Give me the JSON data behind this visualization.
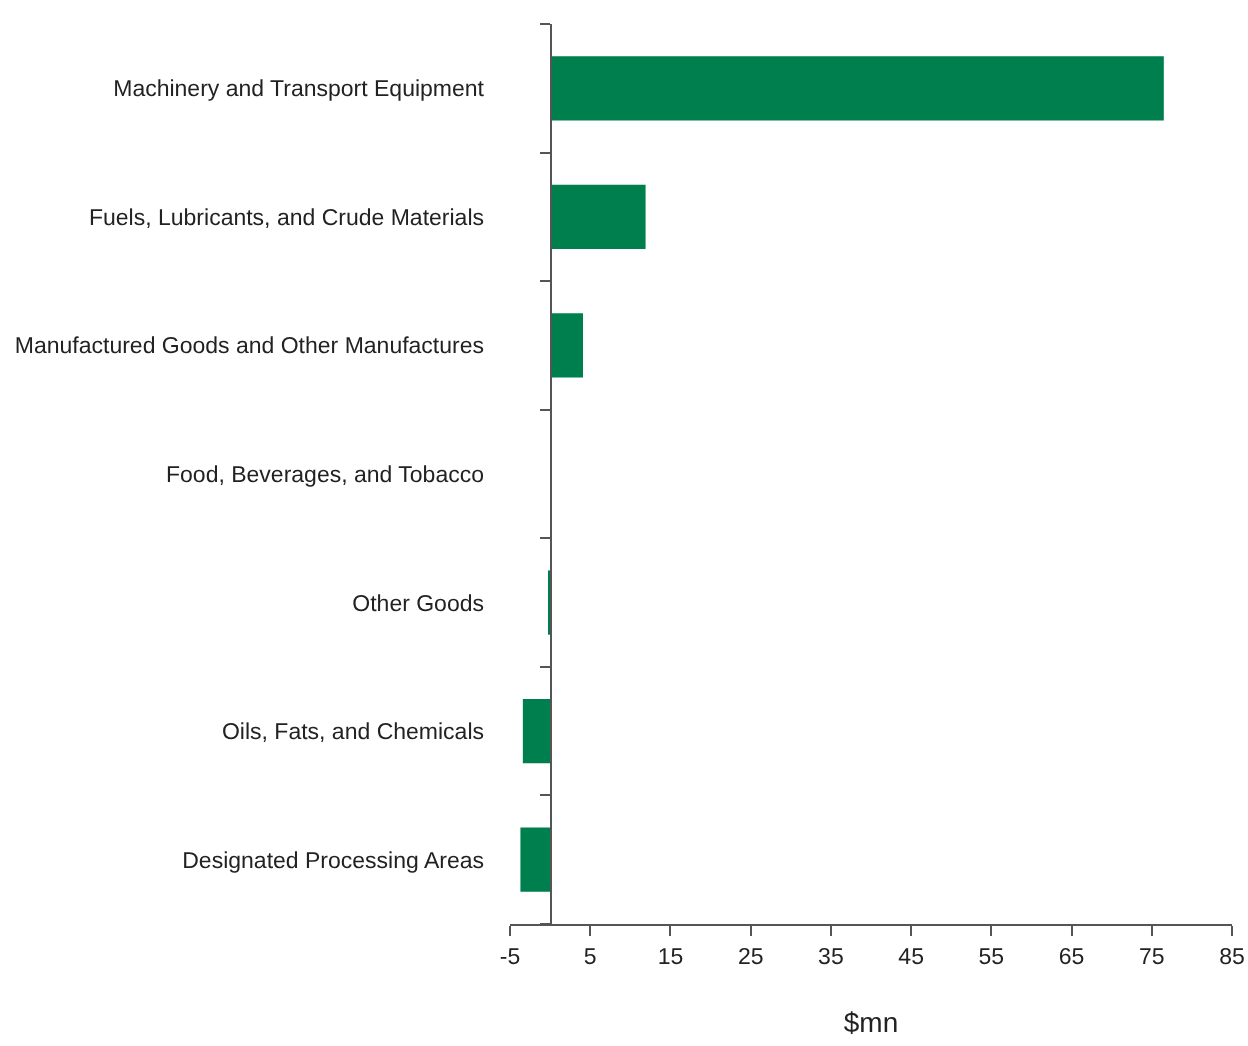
{
  "chart_data": {
    "type": "bar",
    "orientation": "horizontal",
    "xlabel": "$mn",
    "categories": [
      "Machinery and Transport Equipment",
      "Fuels, Lubricants, and Crude Materials",
      "Manufactured Goods and Other Manufactures",
      "Food, Beverages, and Tobacco",
      "Other Goods",
      "Oils, Fats, and Chemicals",
      "Designated Processing Areas"
    ],
    "values": [
      76.5,
      11.9,
      4.1,
      0.1,
      -0.2,
      -3.4,
      -3.7
    ],
    "color": "#007f4e",
    "xlim": [
      -5,
      85
    ],
    "xticks": [
      -5,
      5,
      15,
      25,
      35,
      45,
      55,
      65,
      75,
      85
    ]
  }
}
